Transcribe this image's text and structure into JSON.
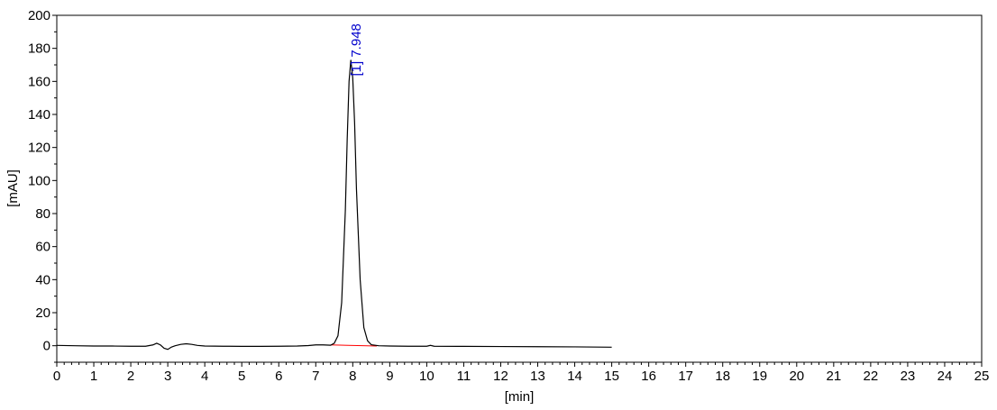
{
  "chart_data": {
    "type": "line",
    "xlabel": "[min]",
    "ylabel": "[mAU]",
    "xlim": [
      0,
      25
    ],
    "ylim": [
      -10,
      200
    ],
    "x_ticks": [
      0,
      1,
      2,
      3,
      4,
      5,
      6,
      7,
      8,
      9,
      10,
      11,
      12,
      13,
      14,
      15,
      16,
      17,
      18,
      19,
      20,
      21,
      22,
      23,
      24,
      25
    ],
    "y_ticks": [
      0,
      20,
      40,
      60,
      80,
      100,
      120,
      140,
      160,
      180,
      200
    ],
    "grid": false,
    "colors": {
      "trace": "#000000",
      "baseline": "#ff0000",
      "annotation": "#0000cc"
    },
    "series": [
      {
        "values_x": [
          0,
          0.5,
          1,
          1.5,
          2,
          2.4,
          2.6,
          2.7,
          2.8,
          2.9,
          3.0,
          3.1,
          3.2,
          3.35,
          3.5,
          3.65,
          3.8,
          4.0,
          4.5,
          5,
          5.5,
          6,
          6.5,
          6.8,
          7.0,
          7.2,
          7.4,
          7.5,
          7.6,
          7.7,
          7.8,
          7.85,
          7.9,
          7.948,
          8.0,
          8.05,
          8.1,
          8.2,
          8.3,
          8.4,
          8.5,
          8.7,
          9,
          9.5,
          10,
          10.1,
          10.2,
          11,
          12,
          13,
          14,
          15
        ],
        "values_y": [
          0.2,
          0,
          -0.2,
          -0.2,
          -0.3,
          -0.3,
          0.5,
          1.5,
          0.5,
          -1.5,
          -2.2,
          -0.8,
          0,
          0.8,
          1.2,
          0.8,
          0.2,
          -0.2,
          -0.3,
          -0.4,
          -0.4,
          -0.3,
          -0.2,
          0.1,
          0.5,
          0.5,
          0.3,
          1.5,
          6,
          26,
          82,
          125,
          160,
          173,
          162,
          135,
          95,
          40,
          11,
          3,
          0.6,
          0,
          -0.2,
          -0.3,
          -0.3,
          0.2,
          -0.3,
          -0.4,
          -0.5,
          -0.6,
          -0.7,
          -0.9
        ]
      }
    ],
    "baseline_segment": {
      "x": [
        7.4,
        8.65
      ],
      "y": [
        0.5,
        -0.2
      ]
    },
    "annotations": [
      {
        "x": 7.948,
        "y": 173,
        "text": "[1]  7.948"
      }
    ]
  }
}
